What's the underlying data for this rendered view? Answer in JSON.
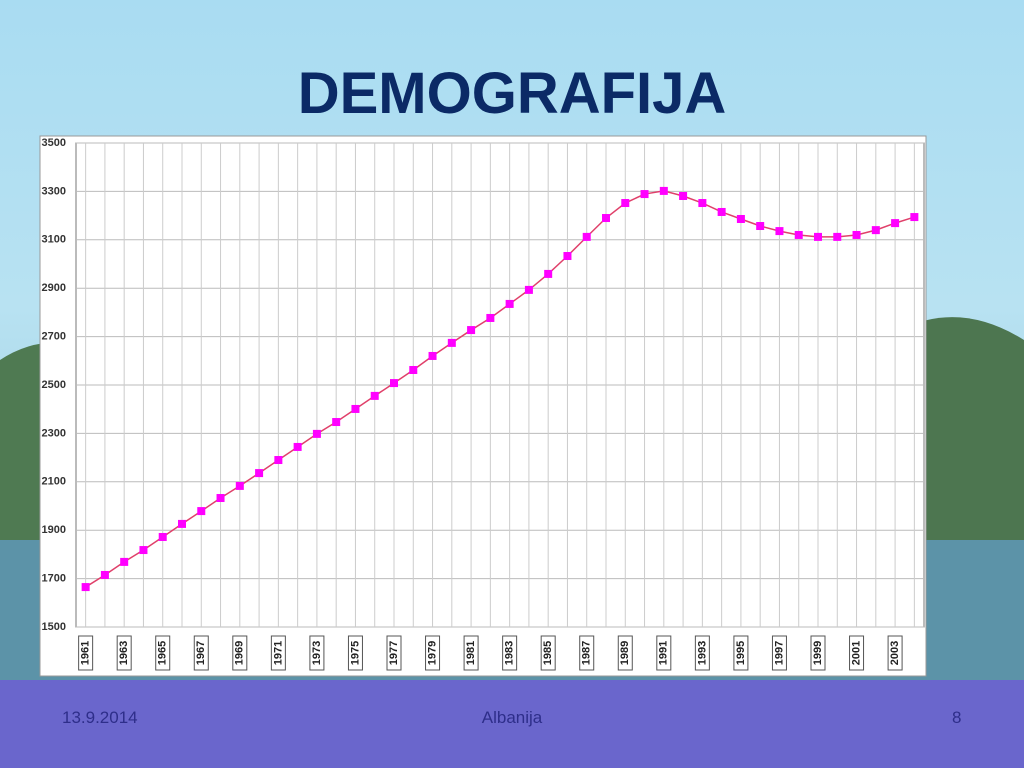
{
  "title": "DEMOGRAFIJA",
  "footer": {
    "date": "13.9.2014",
    "center": "Albanija",
    "page": "8"
  },
  "chart_data": {
    "type": "line",
    "categories": [
      "1961",
      null,
      "1963",
      null,
      "1965",
      null,
      "1967",
      null,
      "1969",
      null,
      "1971",
      null,
      "1973",
      null,
      "1975",
      null,
      "1977",
      null,
      "1979",
      null,
      "1981",
      null,
      "1983",
      null,
      "1985",
      null,
      "1987",
      null,
      "1989",
      null,
      "1991",
      null,
      "1993",
      null,
      "1995",
      null,
      "1997",
      null,
      "1999",
      null,
      "2001",
      null,
      "2003",
      null
    ],
    "values": [
      1665,
      1715,
      1769,
      1818,
      1872,
      1926,
      1979,
      2033,
      2083,
      2136,
      2190,
      2244,
      2298,
      2347,
      2401,
      2455,
      2508,
      2562,
      2620,
      2674,
      2727,
      2777,
      2835,
      2893,
      2959,
      3033,
      3112,
      3190,
      3252,
      3289,
      3302,
      3281,
      3252,
      3215,
      3186,
      3157,
      3136,
      3120,
      3112,
      3112,
      3120,
      3140,
      3169,
      3194
    ],
    "line_color": "#e0406a",
    "marker_color": "#ff00ff",
    "ylim": [
      1500,
      3500
    ],
    "yticks": [
      1500,
      1700,
      1900,
      2100,
      2300,
      2500,
      2700,
      2900,
      3100,
      3300,
      3500
    ],
    "grid": true
  }
}
